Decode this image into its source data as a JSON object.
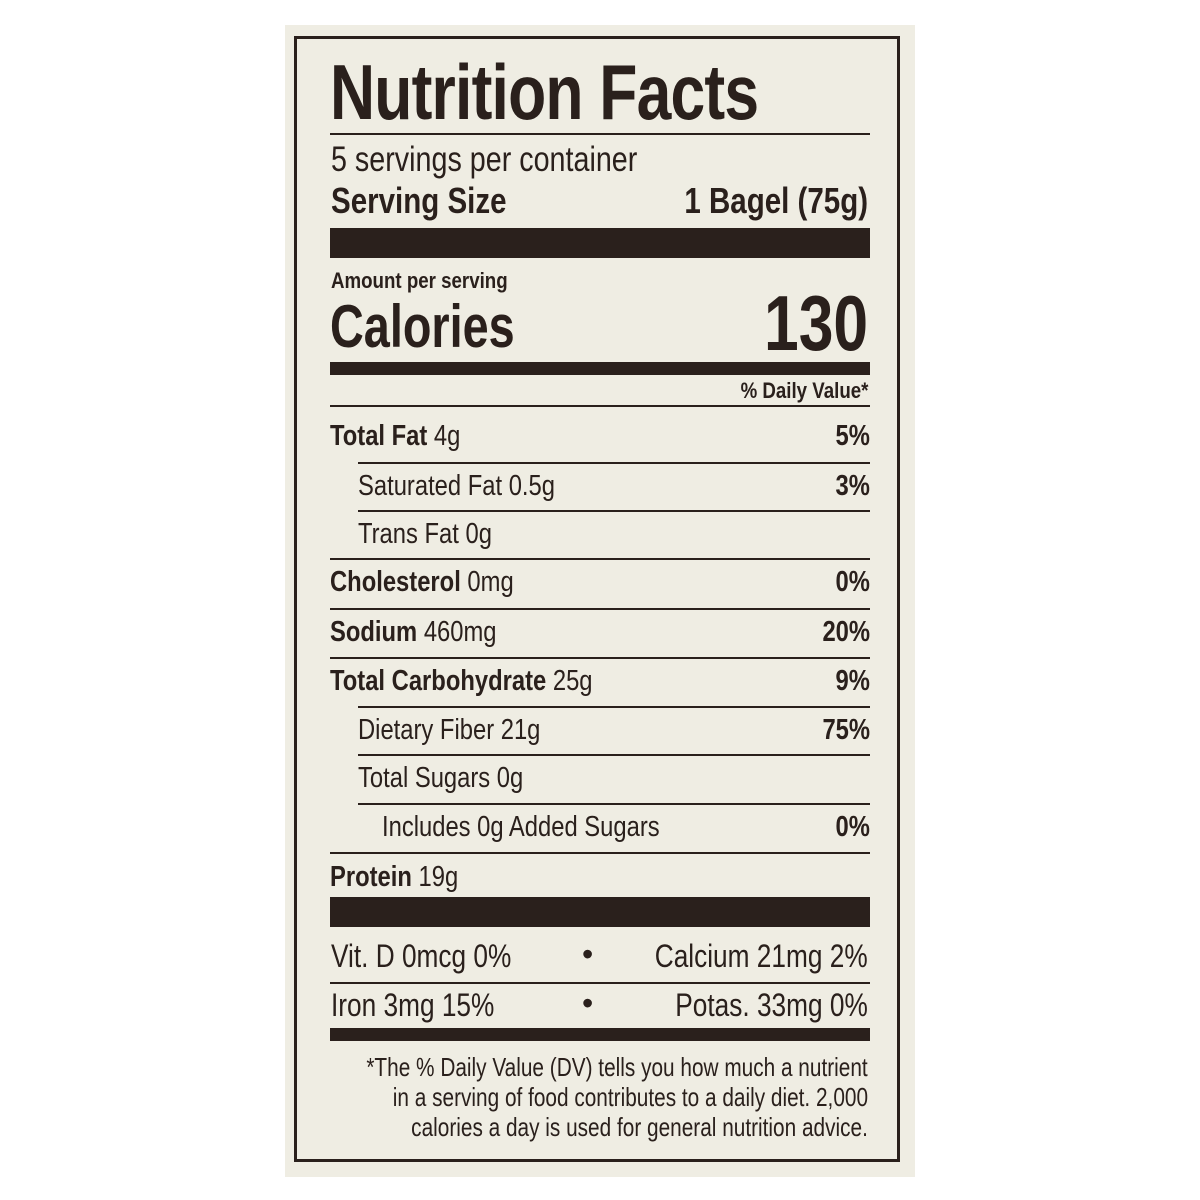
{
  "label": {
    "title": "Nutrition Facts",
    "servings_per_container": "5 servings per container",
    "serving_size_label": "Serving Size",
    "serving_size_value": "1 Bagel (75g)",
    "amount_per_serving": "Amount per serving",
    "calories_label": "Calories",
    "calories_value": "130",
    "daily_value_header": "% Daily Value*",
    "nutrients": [
      {
        "name": "Total Fat",
        "amount": "4g",
        "dv": "5%",
        "bold": true,
        "indent": 0
      },
      {
        "name": "Saturated Fat",
        "amount": "0.5g",
        "dv": "3%",
        "bold": false,
        "indent": 1
      },
      {
        "name": "Trans Fat",
        "amount": "0g",
        "dv": "",
        "bold": false,
        "indent": 1
      },
      {
        "name": "Cholesterol",
        "amount": "0mg",
        "dv": "0%",
        "bold": true,
        "indent": 0
      },
      {
        "name": "Sodium",
        "amount": "460mg",
        "dv": "20%",
        "bold": true,
        "indent": 0
      },
      {
        "name": "Total Carbohydrate",
        "amount": "25g",
        "dv": "9%",
        "bold": true,
        "indent": 0
      },
      {
        "name": "Dietary Fiber",
        "amount": "21g",
        "dv": "75%",
        "bold": false,
        "indent": 1
      },
      {
        "name": "Total Sugars",
        "amount": "0g",
        "dv": "",
        "bold": false,
        "indent": 1
      },
      {
        "name": "Includes 0g Added Sugars",
        "amount": "",
        "dv": "0%",
        "bold": false,
        "indent": 2
      },
      {
        "name": "Protein",
        "amount": "19g",
        "dv": "",
        "bold": true,
        "indent": 0
      }
    ],
    "vitamins": {
      "vit_d": "Vit. D 0mcg 0%",
      "calcium": "Calcium 21mg 2%",
      "iron": "Iron 3mg 15%",
      "potassium": "Potas. 33mg 0%",
      "separator": "•"
    },
    "footnote": [
      "*The % Daily Value (DV) tells you how much a nutrient",
      "in a serving of food contributes to a daily diet. 2,000",
      "calories a day is used for general nutrition advice."
    ],
    "ink_color": "#2a201c",
    "paper_color": "#efede3"
  }
}
